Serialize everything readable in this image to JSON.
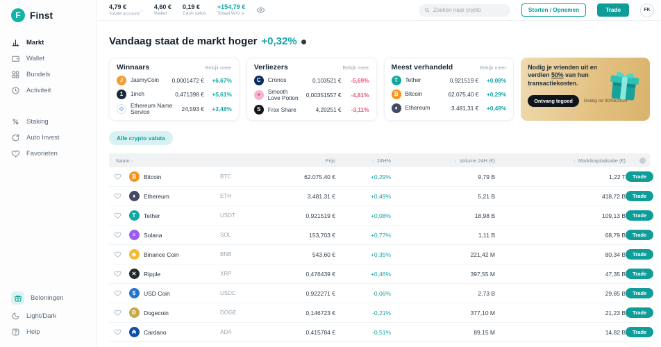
{
  "theme": {
    "accent": "#0f9d9a",
    "accent_text": "#13a3a8",
    "negative": "#e4557a",
    "promo_gradient": [
      "#eedbb0",
      "#d9b36c"
    ],
    "chip_bg": "#d9f1f2"
  },
  "brand": {
    "name": "Finst"
  },
  "sidebar": {
    "sections": [
      {
        "items": [
          {
            "label": "Markt",
            "icon": "chart",
            "active": true
          },
          {
            "label": "Wallet",
            "icon": "wallet"
          },
          {
            "label": "Bundels",
            "icon": "grid"
          },
          {
            "label": "Activiteit",
            "icon": "clock"
          }
        ]
      },
      {
        "items": [
          {
            "label": "Staking",
            "icon": "percent"
          },
          {
            "label": "Auto Invest",
            "icon": "refresh"
          },
          {
            "label": "Favorieten",
            "icon": "heart"
          }
        ]
      },
      {
        "items": [
          {
            "label": "Beloningen",
            "icon": "gift",
            "accent": true
          },
          {
            "label": "Light/Dark",
            "icon": "moon"
          },
          {
            "label": "Help",
            "icon": "help"
          }
        ]
      }
    ]
  },
  "topbar": {
    "stats": [
      {
        "value": "4,79 €",
        "label": "Totale account",
        "info": true
      },
      {
        "value": "4,60 €",
        "label": "Wallet"
      },
      {
        "value": "0,19 €",
        "label": "Cash saldo"
      },
      {
        "value": "+154,79 €",
        "label": "Totaal W/V",
        "teal": true,
        "chevron": "∧"
      }
    ],
    "search_placeholder": "Zoeken naar crypto",
    "deposit_button": "Storten / Opnemen",
    "trade_button": "Trade",
    "avatar_initials": "FK"
  },
  "header": {
    "title": "Vandaag staat de markt hoger",
    "change": "+0,32%"
  },
  "panels": [
    {
      "key": "winnaars",
      "title": "Winnaars",
      "link": "Bekijk meer",
      "rows": [
        {
          "name": "JasmyCoin",
          "price": "0,0001472 €",
          "change": "+6,67%",
          "dir": "up",
          "icon": {
            "bg": "#f79c2d",
            "glyph": "J",
            "fg": "#ffffff"
          }
        },
        {
          "name": "1inch",
          "price": "0,471398 €",
          "change": "+5,61%",
          "dir": "up",
          "icon": {
            "bg": "#1b2a3a",
            "glyph": "1",
            "fg": "#ffffff"
          }
        },
        {
          "name": "Ethereum Name Service",
          "price": "24,593 €",
          "change": "+3,48%",
          "dir": "up",
          "icon": {
            "bg": "#ffffff",
            "glyph": "◇",
            "fg": "#5284ff",
            "border": "#d8e2f5"
          }
        }
      ]
    },
    {
      "key": "verliezers",
      "title": "Verliezers",
      "link": "Bekijk meer",
      "rows": [
        {
          "name": "Cronos",
          "price": "0,103521 €",
          "change": "-5,69%",
          "dir": "down",
          "icon": {
            "bg": "#0c2a5b",
            "glyph": "C",
            "fg": "#ffffff"
          }
        },
        {
          "name": "Smooth Love Potion",
          "price": "0,00351557 €",
          "change": "-4,81%",
          "dir": "down",
          "icon": {
            "bg": "#f3b6cd",
            "glyph": "♥",
            "fg": "#e0558a"
          }
        },
        {
          "name": "Frax Share",
          "price": "4,20251 €",
          "change": "-3,11%",
          "dir": "down",
          "icon": {
            "bg": "#14161a",
            "glyph": "S",
            "fg": "#ffffff"
          }
        }
      ]
    },
    {
      "key": "meest-verhandeld",
      "title": "Meest verhandeld",
      "link": "Bekijk meer",
      "rows": [
        {
          "name": "Tether",
          "price": "0,921519 €",
          "change": "+0,08%",
          "dir": "up",
          "icon": {
            "bg": "#12a8a0",
            "glyph": "T",
            "fg": "#ffffff"
          }
        },
        {
          "name": "Bitcoin",
          "price": "62.075,40 €",
          "change": "+0,29%",
          "dir": "up",
          "icon": {
            "bg": "#f7931a",
            "glyph": "₿",
            "fg": "#ffffff"
          }
        },
        {
          "name": "Ethereum",
          "price": "3.481,31 €",
          "change": "+0,49%",
          "dir": "up",
          "icon": {
            "bg": "#454a63",
            "glyph": "♦",
            "fg": "#ffffff"
          }
        }
      ]
    }
  ],
  "promo": {
    "text_before": "Nodig je vrienden uit en verdien ",
    "highlight": "50%",
    "text_after": " van hun transactiekosten.",
    "button": "Ontvang tegoed",
    "validity": "Geldig tot 30/06/2024"
  },
  "filter_chip": "Alle crypto valuta",
  "table": {
    "headers": [
      "Naam",
      "Prijs",
      "24H%",
      "Volume 24H (€)",
      "Marktkapitalisatie (€)"
    ],
    "trade_label": "Trade",
    "rows": [
      {
        "name": "Bitcoin",
        "ticker": "BTC",
        "price": "62.075,40 €",
        "change": "+0,29%",
        "dir": "up",
        "volume": "9,79 B",
        "mcap": "1,22 T",
        "icon": {
          "bg": "#f7931a",
          "glyph": "₿",
          "fg": "#ffffff"
        }
      },
      {
        "name": "Ethereum",
        "ticker": "ETH",
        "price": "3.481,31 €",
        "change": "+0,49%",
        "dir": "up",
        "volume": "5,21 B",
        "mcap": "418,72 B",
        "icon": {
          "bg": "#454a63",
          "glyph": "♦",
          "fg": "#ffffff"
        }
      },
      {
        "name": "Tether",
        "ticker": "USDT",
        "price": "0,921519 €",
        "change": "+0,08%",
        "dir": "up",
        "volume": "18,98 B",
        "mcap": "109,13 B",
        "icon": {
          "bg": "#12a8a0",
          "glyph": "T",
          "fg": "#ffffff"
        }
      },
      {
        "name": "Solana",
        "ticker": "SOL",
        "price": "153,703 €",
        "change": "+0,77%",
        "dir": "up",
        "volume": "1,11 B",
        "mcap": "68,79 B",
        "icon": {
          "bg": "#9b5cf0",
          "glyph": "≡",
          "fg": "#ffffff"
        }
      },
      {
        "name": "Binance Coin",
        "ticker": "BNB",
        "price": "543,60 €",
        "change": "+0,35%",
        "dir": "up",
        "volume": "221,42 M",
        "mcap": "80,34 B",
        "icon": {
          "bg": "#f3ba2f",
          "glyph": "◆",
          "fg": "#ffffff"
        }
      },
      {
        "name": "Ripple",
        "ticker": "XRP",
        "price": "0,476439 €",
        "change": "+0,46%",
        "dir": "up",
        "volume": "397,55 M",
        "mcap": "47,35 B",
        "icon": {
          "bg": "#23292f",
          "glyph": "✕",
          "fg": "#ffffff"
        }
      },
      {
        "name": "USD Coin",
        "ticker": "USDC",
        "price": "0,922271 €",
        "change": "-0,06%",
        "dir": "down",
        "volume": "2,73 B",
        "mcap": "29,85 B",
        "icon": {
          "bg": "#2775ca",
          "glyph": "$",
          "fg": "#ffffff"
        }
      },
      {
        "name": "Dogecoin",
        "ticker": "DOGE",
        "price": "0,146723 €",
        "change": "-0,21%",
        "dir": "down",
        "volume": "377,10 M",
        "mcap": "21,23 B",
        "icon": {
          "bg": "#c8a94a",
          "glyph": "Ð",
          "fg": "#ffffff"
        }
      },
      {
        "name": "Cardano",
        "ticker": "ADA",
        "price": "0,415784 €",
        "change": "-0,51%",
        "dir": "down",
        "volume": "89,15 M",
        "mcap": "14,82 B",
        "icon": {
          "bg": "#0f4fa8",
          "glyph": "₳",
          "fg": "#ffffff"
        }
      }
    ]
  }
}
